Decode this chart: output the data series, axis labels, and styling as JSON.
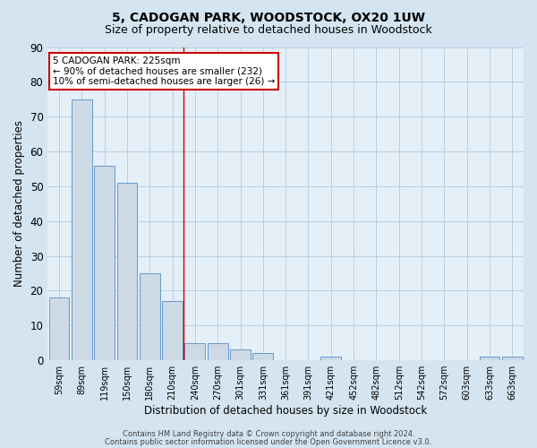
{
  "title": "5, CADOGAN PARK, WOODSTOCK, OX20 1UW",
  "subtitle": "Size of property relative to detached houses in Woodstock",
  "xlabel": "Distribution of detached houses by size in Woodstock",
  "ylabel": "Number of detached properties",
  "bar_labels": [
    "59sqm",
    "89sqm",
    "119sqm",
    "150sqm",
    "180sqm",
    "210sqm",
    "240sqm",
    "270sqm",
    "301sqm",
    "331sqm",
    "361sqm",
    "391sqm",
    "421sqm",
    "452sqm",
    "482sqm",
    "512sqm",
    "542sqm",
    "572sqm",
    "603sqm",
    "633sqm",
    "663sqm"
  ],
  "bar_values": [
    18,
    75,
    56,
    51,
    25,
    17,
    5,
    5,
    3,
    2,
    0,
    0,
    1,
    0,
    0,
    0,
    0,
    0,
    0,
    1,
    1
  ],
  "bar_color": "#cdd9e5",
  "bar_edgecolor": "#6699cc",
  "ylim": [
    0,
    90
  ],
  "yticks": [
    0,
    10,
    20,
    30,
    40,
    50,
    60,
    70,
    80,
    90
  ],
  "red_line_x": 6.0,
  "annotation_line1": "5 CADOGAN PARK: 225sqm",
  "annotation_line2": "← 90% of detached houses are smaller (232)",
  "annotation_line3": "10% of semi-detached houses are larger (26) →",
  "annotation_box_color": "#ffffff",
  "annotation_box_edgecolor": "#cc0000",
  "footer_line1": "Contains HM Land Registry data © Crown copyright and database right 2024.",
  "footer_line2": "Contains public sector information licensed under the Open Government Licence v3.0.",
  "grid_color": "#b8cfe0",
  "background_color": "#d4e4f0",
  "plot_bg_color": "#e4eff8",
  "title_fontsize": 10,
  "subtitle_fontsize": 9
}
